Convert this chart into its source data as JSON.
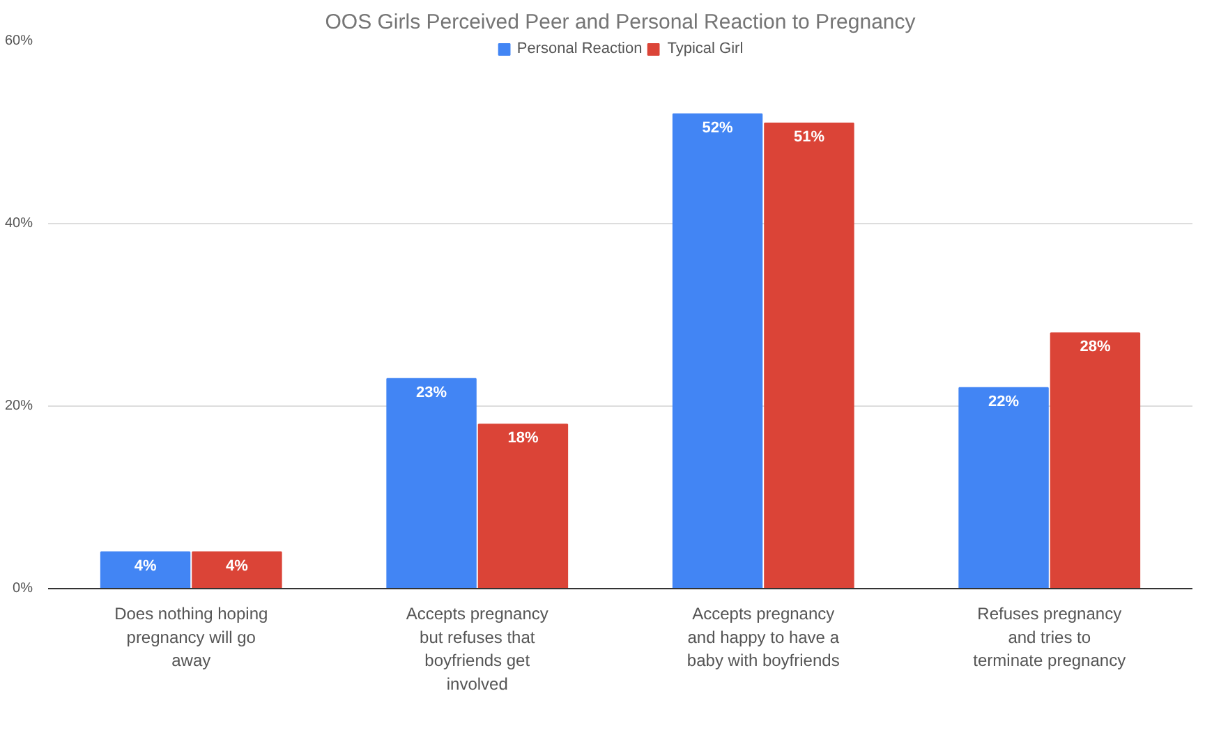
{
  "chart_data": {
    "type": "bar",
    "title": "OOS Girls Perceived Peer and Personal Reaction to Pregnancy",
    "categories": [
      "Does nothing hoping pregnancy will go away",
      "Accepts pregnancy but refuses that boyfriends get involved",
      "Accepts pregnancy and happy to have a baby with boyfriends",
      "Refuses pregnancy and tries to terminate pregnancy"
    ],
    "series": [
      {
        "name": "Personal Reaction",
        "color": "#4285f4",
        "values": [
          4,
          23,
          52,
          22
        ],
        "value_labels": [
          "4%",
          "23%",
          "52%",
          "22%"
        ]
      },
      {
        "name": "Typical Girl",
        "color": "#db4437",
        "values": [
          4,
          18,
          51,
          28
        ],
        "value_labels": [
          "4%",
          "18%",
          "51%",
          "28%"
        ]
      }
    ],
    "ylim": [
      0,
      60
    ],
    "yticks": [
      {
        "value": 0,
        "label": "0%"
      },
      {
        "value": 20,
        "label": "20%"
      },
      {
        "value": 40,
        "label": "40%"
      },
      {
        "value": 60,
        "label": "60%"
      }
    ],
    "grid": "y",
    "legend": "top"
  }
}
